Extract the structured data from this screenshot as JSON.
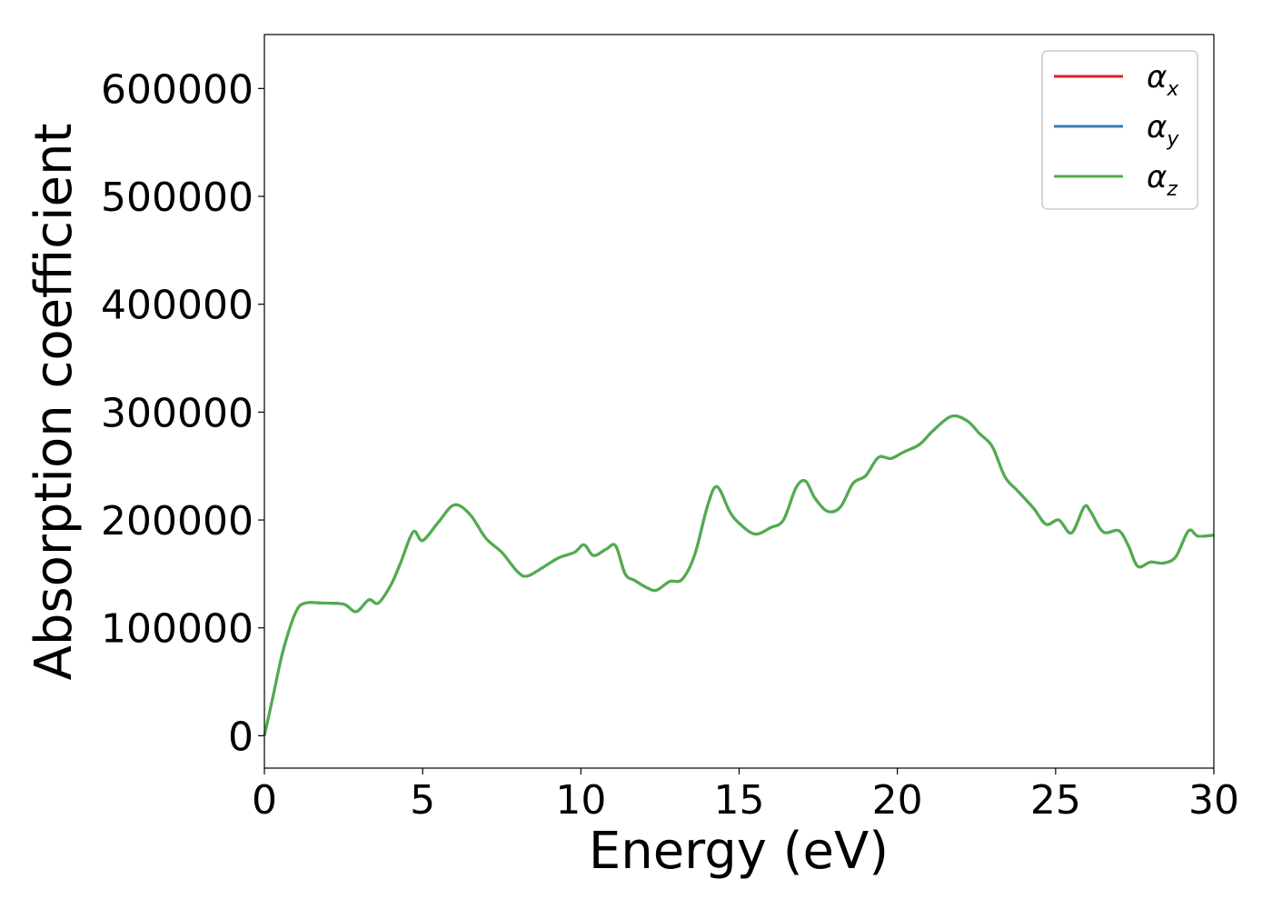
{
  "chart_data": {
    "type": "line",
    "xlabel": "Energy (eV)",
    "ylabel": "Absorption coefficient",
    "xlim": [
      0,
      30
    ],
    "ylim": [
      -30000,
      650000
    ],
    "xticks": [
      0,
      5,
      10,
      15,
      20,
      25,
      30
    ],
    "yticks": [
      0,
      100000,
      200000,
      300000,
      400000,
      500000,
      600000
    ],
    "xtick_labels": [
      "0",
      "5",
      "10",
      "15",
      "20",
      "25",
      "30"
    ],
    "ytick_labels": [
      "0",
      "100000",
      "200000",
      "300000",
      "400000",
      "500000",
      "600000"
    ],
    "grid": false,
    "legend_position": "top-right",
    "legend": [
      {
        "symbol": "α",
        "subscript": "x",
        "color": "#e41a1c"
      },
      {
        "symbol": "α",
        "subscript": "y",
        "color": "#377eb8"
      },
      {
        "symbol": "α",
        "subscript": "z",
        "color": "#4daf4a"
      }
    ],
    "series": [
      {
        "color": "#e41a1c",
        "x": [
          0,
          0.3,
          0.6,
          1.0,
          1.3,
          1.8,
          2.5,
          2.9,
          3.3,
          3.6,
          4.0,
          4.3,
          4.7,
          5.0,
          5.5,
          6.0,
          6.5,
          7.0,
          7.5,
          8.0,
          8.3,
          8.8,
          9.3,
          9.8,
          10.1,
          10.4,
          10.8,
          11.1,
          11.4,
          11.7,
          12.1,
          12.4,
          12.8,
          13.2,
          13.6,
          14.0,
          14.3,
          14.7,
          15.0,
          15.5,
          16.0,
          16.4,
          16.8,
          17.1,
          17.4,
          17.8,
          18.2,
          18.6,
          19.0,
          19.4,
          19.8,
          20.2,
          20.7,
          21.1,
          21.7,
          22.2,
          22.6,
          23.0,
          23.4,
          23.8,
          24.3,
          24.7,
          25.1,
          25.5,
          25.9,
          26.1,
          26.5,
          27.0,
          27.3,
          27.6,
          28.0,
          28.4,
          28.8,
          29.2,
          29.5,
          30.0
        ],
        "y": [
          0,
          40000,
          80000,
          115000,
          123000,
          123000,
          122000,
          115000,
          126000,
          123000,
          140000,
          160000,
          189000,
          181000,
          198000,
          214000,
          205000,
          183000,
          170000,
          152000,
          148000,
          156000,
          165000,
          170000,
          177000,
          167000,
          173000,
          176000,
          150000,
          144000,
          137000,
          135000,
          143000,
          145000,
          168000,
          213000,
          231000,
          208000,
          197000,
          187000,
          193000,
          200000,
          230000,
          236000,
          220000,
          208000,
          212000,
          234000,
          241000,
          258000,
          257000,
          263000,
          270000,
          282000,
          296000,
          292000,
          280000,
          268000,
          240000,
          227000,
          211000,
          196000,
          200000,
          188000,
          212000,
          208000,
          189000,
          190000,
          176000,
          157000,
          161000,
          160000,
          166000,
          190000,
          185000,
          186000
        ]
      },
      {
        "color": "#377eb8",
        "x": [
          0,
          0.3,
          0.6,
          1.0,
          1.3,
          1.8,
          2.5,
          2.9,
          3.3,
          3.6,
          4.0,
          4.3,
          4.7,
          5.0,
          5.5,
          6.0,
          6.5,
          7.0,
          7.5,
          8.0,
          8.3,
          8.8,
          9.3,
          9.8,
          10.1,
          10.4,
          10.8,
          11.1,
          11.4,
          11.7,
          12.1,
          12.4,
          12.8,
          13.2,
          13.6,
          14.0,
          14.3,
          14.7,
          15.0,
          15.5,
          16.0,
          16.4,
          16.8,
          17.1,
          17.4,
          17.8,
          18.2,
          18.6,
          19.0,
          19.4,
          19.8,
          20.2,
          20.7,
          21.1,
          21.7,
          22.2,
          22.6,
          23.0,
          23.4,
          23.8,
          24.3,
          24.7,
          25.1,
          25.5,
          25.9,
          26.1,
          26.5,
          27.0,
          27.3,
          27.6,
          28.0,
          28.4,
          28.8,
          29.2,
          29.5,
          30.0
        ],
        "y": [
          0,
          40000,
          80000,
          115000,
          123000,
          123000,
          122000,
          115000,
          126000,
          123000,
          140000,
          160000,
          189000,
          181000,
          198000,
          214000,
          205000,
          183000,
          170000,
          152000,
          148000,
          156000,
          165000,
          170000,
          177000,
          167000,
          173000,
          176000,
          150000,
          144000,
          137000,
          135000,
          143000,
          145000,
          168000,
          213000,
          231000,
          208000,
          197000,
          187000,
          193000,
          200000,
          230000,
          236000,
          220000,
          208000,
          212000,
          234000,
          241000,
          258000,
          257000,
          263000,
          270000,
          282000,
          296000,
          292000,
          280000,
          268000,
          240000,
          227000,
          211000,
          196000,
          200000,
          188000,
          212000,
          208000,
          189000,
          190000,
          176000,
          157000,
          161000,
          160000,
          166000,
          190000,
          185000,
          186000
        ]
      },
      {
        "color": "#4daf4a",
        "x": [
          0,
          0.3,
          0.6,
          1.0,
          1.3,
          1.8,
          2.5,
          2.9,
          3.3,
          3.6,
          4.0,
          4.3,
          4.7,
          5.0,
          5.5,
          6.0,
          6.5,
          7.0,
          7.5,
          8.0,
          8.3,
          8.8,
          9.3,
          9.8,
          10.1,
          10.4,
          10.8,
          11.1,
          11.4,
          11.7,
          12.1,
          12.4,
          12.8,
          13.2,
          13.6,
          14.0,
          14.3,
          14.7,
          15.0,
          15.5,
          16.0,
          16.4,
          16.8,
          17.1,
          17.4,
          17.8,
          18.2,
          18.6,
          19.0,
          19.4,
          19.8,
          20.2,
          20.7,
          21.1,
          21.7,
          22.2,
          22.6,
          23.0,
          23.4,
          23.8,
          24.3,
          24.7,
          25.1,
          25.5,
          25.9,
          26.1,
          26.5,
          27.0,
          27.3,
          27.6,
          28.0,
          28.4,
          28.8,
          29.2,
          29.5,
          30.0
        ],
        "y": [
          0,
          40000,
          80000,
          115000,
          123000,
          123000,
          122000,
          115000,
          126000,
          123000,
          140000,
          160000,
          189000,
          181000,
          198000,
          214000,
          205000,
          183000,
          170000,
          152000,
          148000,
          156000,
          165000,
          170000,
          177000,
          167000,
          173000,
          176000,
          150000,
          144000,
          137000,
          135000,
          143000,
          145000,
          168000,
          213000,
          231000,
          208000,
          197000,
          187000,
          193000,
          200000,
          230000,
          236000,
          220000,
          208000,
          212000,
          234000,
          241000,
          258000,
          257000,
          263000,
          270000,
          282000,
          296000,
          292000,
          280000,
          268000,
          240000,
          227000,
          211000,
          196000,
          200000,
          188000,
          212000,
          208000,
          189000,
          190000,
          176000,
          157000,
          161000,
          160000,
          166000,
          190000,
          185000,
          186000
        ]
      }
    ]
  }
}
